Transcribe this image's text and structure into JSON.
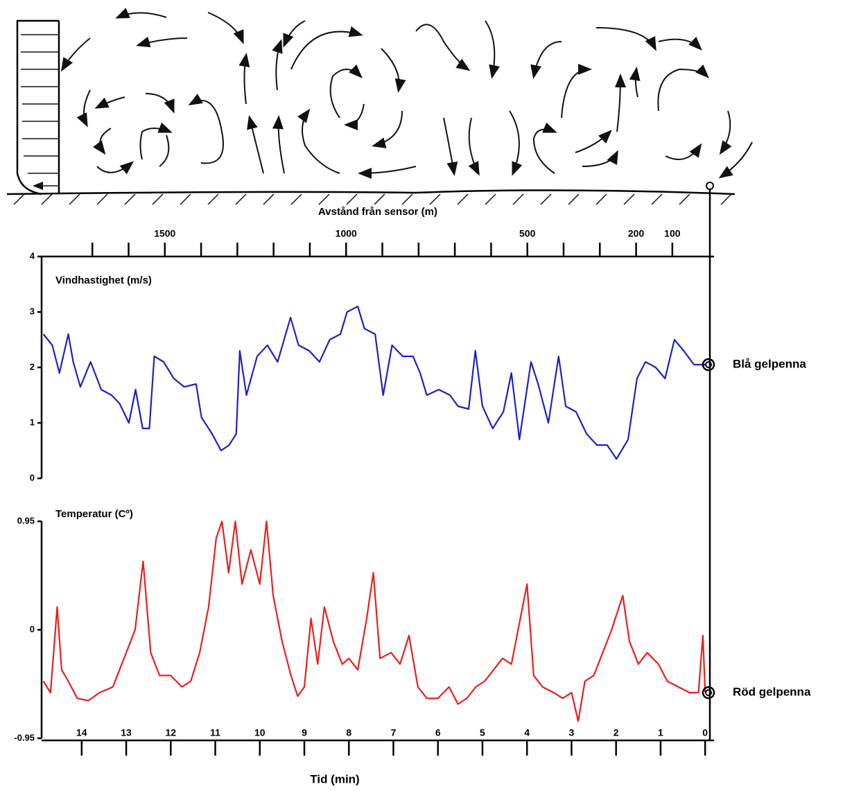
{
  "chart_data": [
    {
      "type": "line",
      "ylabel": "Vindhastighet (m/s)",
      "x2label": "Avstånd från sensor (m)",
      "x2lim": [
        1840,
        -15
      ],
      "x2ticks": [
        1500,
        1000,
        500,
        200,
        100
      ],
      "x2minor_ticks": [
        1700,
        1600,
        1400,
        1300,
        1200,
        1100,
        900,
        800,
        700,
        600,
        400,
        300
      ],
      "xlim": [
        14.9,
        -0.2
      ],
      "ylim": [
        0,
        4
      ],
      "yticks": [
        0,
        1,
        2,
        3,
        4
      ],
      "x": [
        14.86,
        14.66,
        14.5,
        14.3,
        14.19,
        14.03,
        13.8,
        13.56,
        13.33,
        13.15,
        12.94,
        12.79,
        12.63,
        12.48,
        12.37,
        12.16,
        11.93,
        11.7,
        11.43,
        11.31,
        11.07,
        10.87,
        10.69,
        10.53,
        10.45,
        10.3,
        10.06,
        9.83,
        9.6,
        9.31,
        9.13,
        8.89,
        8.66,
        8.43,
        8.19,
        8.04,
        7.8,
        7.65,
        7.41,
        7.23,
        7.03,
        6.79,
        6.56,
        6.4,
        6.25,
        5.98,
        5.73,
        5.55,
        5.31,
        5.16,
        5.0,
        4.77,
        4.53,
        4.35,
        4.17,
        3.91,
        3.75,
        3.52,
        3.29,
        3.13,
        2.9,
        2.66,
        2.43,
        2.2,
        1.99,
        1.73,
        1.53,
        1.34,
        1.11,
        0.9,
        0.69,
        0.48,
        0.25,
        0.0
      ],
      "series": [
        {
          "name": "Blå gelpenna",
          "color": "#1f1fc4",
          "values": [
            2.6,
            2.4,
            1.9,
            2.6,
            2.1,
            1.65,
            2.1,
            1.6,
            1.5,
            1.35,
            1.0,
            1.6,
            0.9,
            0.9,
            2.2,
            2.1,
            1.8,
            1.65,
            1.7,
            1.1,
            0.8,
            0.5,
            0.6,
            0.8,
            2.3,
            1.5,
            2.2,
            2.4,
            2.1,
            2.9,
            2.4,
            2.3,
            2.1,
            2.5,
            2.6,
            3.0,
            3.1,
            2.7,
            2.6,
            1.5,
            2.4,
            2.2,
            2.2,
            1.9,
            1.5,
            1.6,
            1.5,
            1.3,
            1.25,
            2.3,
            1.3,
            0.9,
            1.2,
            1.9,
            0.7,
            2.1,
            1.7,
            1.0,
            2.2,
            1.3,
            1.2,
            0.8,
            0.6,
            0.6,
            0.35,
            0.7,
            1.8,
            2.1,
            2.0,
            1.8,
            2.5,
            2.3,
            2.05,
            2.05
          ]
        }
      ]
    },
    {
      "type": "line",
      "ylabel": "Temperatur (Cº)",
      "xlabel": "Tid (min)",
      "xlim": [
        14.9,
        -0.2
      ],
      "xticks": [
        14,
        13,
        12,
        11,
        10,
        9,
        8,
        7,
        6,
        5,
        4,
        3,
        2,
        1,
        0
      ],
      "ylim": [
        -0.95,
        0.95
      ],
      "yticks": [
        -0.95,
        0,
        0.95
      ],
      "x": [
        14.86,
        14.7,
        14.55,
        14.45,
        14.3,
        14.1,
        13.85,
        13.6,
        13.3,
        13.05,
        12.8,
        12.62,
        12.45,
        12.25,
        12.0,
        11.75,
        11.55,
        11.35,
        11.15,
        10.98,
        10.85,
        10.7,
        10.55,
        10.4,
        10.2,
        10.0,
        9.85,
        9.7,
        9.5,
        9.3,
        9.15,
        9.0,
        8.85,
        8.7,
        8.55,
        8.35,
        8.15,
        8.0,
        7.8,
        7.6,
        7.45,
        7.3,
        7.05,
        6.85,
        6.65,
        6.45,
        6.25,
        6.0,
        5.75,
        5.55,
        5.35,
        5.15,
        4.95,
        4.75,
        4.55,
        4.35,
        4.15,
        4.0,
        3.85,
        3.65,
        3.4,
        3.2,
        3.0,
        2.85,
        2.7,
        2.5,
        2.3,
        2.1,
        1.85,
        1.7,
        1.5,
        1.3,
        1.05,
        0.85,
        0.6,
        0.35,
        0.15,
        0.05,
        0.0
      ],
      "series": [
        {
          "name": "Röd gelpenna",
          "color": "#ee1c1c",
          "values": [
            -0.45,
            -0.55,
            0.2,
            -0.35,
            -0.45,
            -0.6,
            -0.62,
            -0.55,
            -0.5,
            -0.25,
            0.0,
            0.6,
            -0.2,
            -0.4,
            -0.4,
            -0.5,
            -0.45,
            -0.2,
            0.2,
            0.8,
            0.95,
            0.5,
            0.95,
            0.4,
            0.7,
            0.4,
            0.95,
            0.3,
            -0.1,
            -0.4,
            -0.58,
            -0.5,
            0.1,
            -0.3,
            0.2,
            -0.1,
            -0.3,
            -0.25,
            -0.35,
            0.1,
            0.5,
            -0.25,
            -0.2,
            -0.3,
            -0.05,
            -0.5,
            -0.6,
            -0.6,
            -0.5,
            -0.65,
            -0.6,
            -0.5,
            -0.45,
            -0.35,
            -0.25,
            -0.3,
            0.1,
            0.4,
            -0.4,
            -0.5,
            -0.55,
            -0.6,
            -0.55,
            -0.8,
            -0.45,
            -0.4,
            -0.2,
            0.0,
            0.3,
            -0.1,
            -0.3,
            -0.2,
            -0.3,
            -0.45,
            -0.5,
            -0.55,
            -0.55,
            -0.05,
            -0.55
          ]
        }
      ]
    }
  ]
}
